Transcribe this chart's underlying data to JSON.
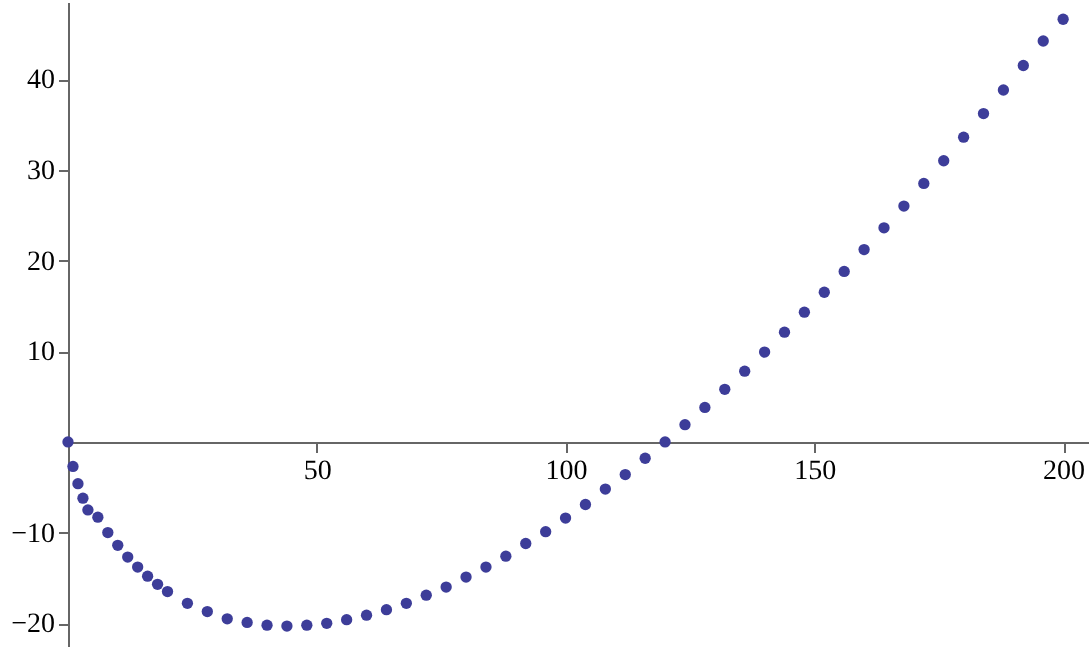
{
  "chart_data": {
    "type": "scatter",
    "x": [
      0,
      1,
      2,
      3,
      4,
      6,
      8,
      10,
      12,
      14,
      16,
      18,
      20,
      24,
      28,
      32,
      36,
      40,
      44,
      48,
      52,
      56,
      60,
      64,
      68,
      72,
      76,
      80,
      84,
      88,
      92,
      96,
      100,
      104,
      108,
      112,
      116,
      120,
      124,
      128,
      132,
      136,
      140,
      144,
      148,
      152,
      156,
      160,
      164,
      168,
      172,
      176,
      180,
      184,
      188,
      192,
      196,
      200
    ],
    "series": [
      {
        "color": "#3d3d99",
        "values": [
          0,
          -2.7,
          -4.6,
          -6.2,
          -7.5,
          -8.3,
          -10.0,
          -11.4,
          -12.7,
          -13.8,
          -14.8,
          -15.7,
          -16.5,
          -17.8,
          -18.7,
          -19.5,
          -19.9,
          -20.2,
          -20.3,
          -20.2,
          -20.0,
          -19.6,
          -19.1,
          -18.5,
          -17.8,
          -16.9,
          -16.0,
          -14.9,
          -13.8,
          -12.6,
          -11.2,
          -9.9,
          -8.4,
          -6.9,
          -5.2,
          -3.6,
          -1.8,
          0,
          1.9,
          3.8,
          5.8,
          7.8,
          9.9,
          12.1,
          14.3,
          16.5,
          18.8,
          21.2,
          23.6,
          26.0,
          28.5,
          31.0,
          33.6,
          36.2,
          38.8,
          41.5,
          44.2,
          46.6
        ]
      }
    ],
    "xlim": [
      0,
      205
    ],
    "ylim": [
      -22.5,
      48.5
    ],
    "xticks": [
      50,
      100,
      150,
      200
    ],
    "yticks": [
      -20,
      -10,
      10,
      20,
      30,
      40
    ],
    "grid": false,
    "marker": "circle"
  }
}
